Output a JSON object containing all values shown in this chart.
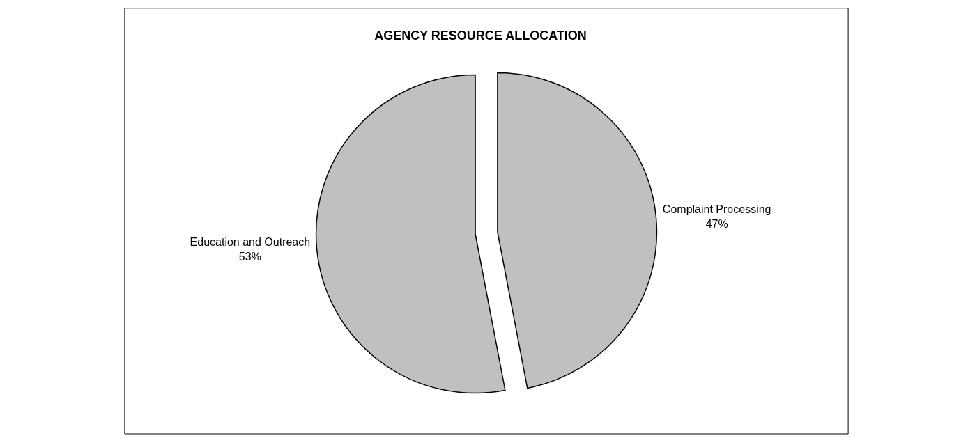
{
  "chart_data": {
    "type": "pie",
    "title": "AGENCY RESOURCE ALLOCATION",
    "categories": [
      "Complaint Processing",
      "Education and Outreach"
    ],
    "values": [
      47,
      53
    ],
    "value_labels": [
      "47%",
      "53%"
    ],
    "colors": [
      "#c0c0c0",
      "#c0c0c0"
    ],
    "legend": false
  }
}
